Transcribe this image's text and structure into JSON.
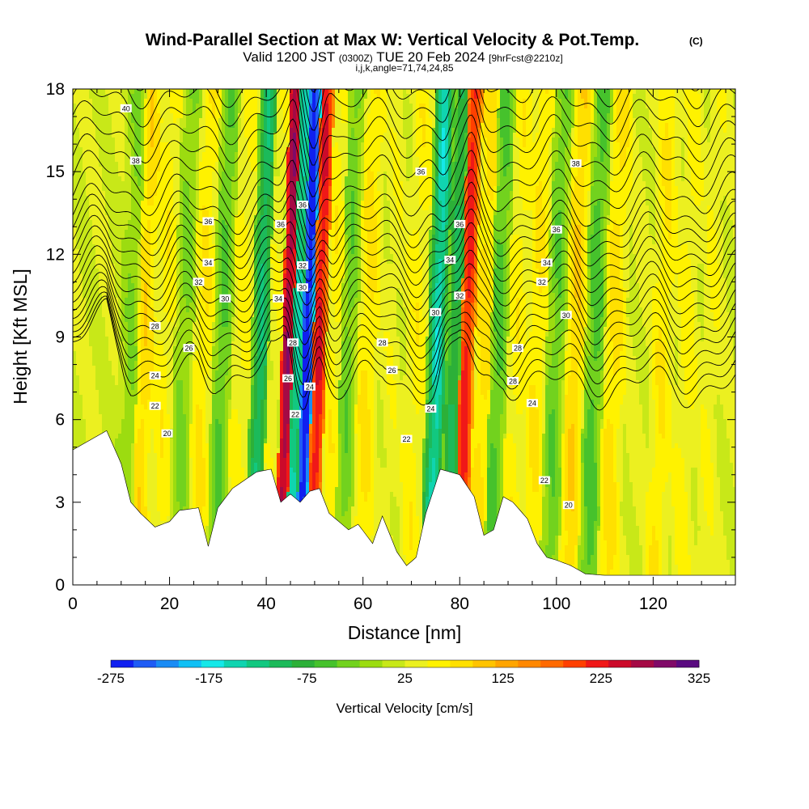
{
  "chart_data": {
    "type": "heatmap",
    "title": "Wind-Parallel Section at Max W: Vertical Velocity & Pot.Temp.",
    "title_mark": "(C)",
    "subtitle_main": "Valid 1200 JST",
    "subtitle_zulu": "(0300Z)",
    "subtitle_date": "TUE 20 Feb 2024",
    "subtitle_fcst": "[9hrFcst@2210z]",
    "subtitle2": "i,j,k,angle=71,74,24,85",
    "xlabel": "Distance [nm]",
    "ylabel": "Height [Kft MSL]",
    "xlim": [
      0,
      137
    ],
    "ylim": [
      0,
      18
    ],
    "x_ticks": [
      "0",
      "20",
      "40",
      "60",
      "80",
      "100",
      "120"
    ],
    "y_ticks": [
      "0",
      "3",
      "6",
      "9",
      "12",
      "15",
      "18"
    ],
    "colorbar": {
      "label": "Vertical Velocity [cm/s]",
      "ticks": [
        "-275",
        "-175",
        "-75",
        "25",
        "125",
        "225",
        "325"
      ],
      "range": [
        -275,
        325
      ],
      "colors": [
        "#1020f0",
        "#1f5cf5",
        "#1a8cf5",
        "#10c0f5",
        "#15e8e8",
        "#10d4b0",
        "#12c880",
        "#1cba5a",
        "#2cb038",
        "#46c22c",
        "#72d21e",
        "#9cdc10",
        "#c8e818",
        "#ecf020",
        "#fff200",
        "#ffe000",
        "#ffc400",
        "#ffa500",
        "#ff8800",
        "#ff6a00",
        "#ff4000",
        "#f01818",
        "#cc0a2a",
        "#a50a45",
        "#800a68",
        "#5a0a80"
      ]
    },
    "w_features": [
      {
        "x": 12,
        "w": -20
      },
      {
        "x": 15,
        "w": 85
      },
      {
        "x": 19,
        "w": 60
      },
      {
        "x": 23,
        "w": -25
      },
      {
        "x": 27,
        "w": 70
      },
      {
        "x": 31,
        "w": -45
      },
      {
        "x": 35,
        "w": 55
      },
      {
        "x": 39,
        "w": -110
      },
      {
        "x": 42,
        "w": 40
      },
      {
        "x": 44.5,
        "w": 270
      },
      {
        "x": 46.5,
        "w": -140
      },
      {
        "x": 48.5,
        "w": -275
      },
      {
        "x": 51,
        "w": 230
      },
      {
        "x": 54,
        "w": 60
      },
      {
        "x": 57,
        "w": -35
      },
      {
        "x": 61,
        "w": 75
      },
      {
        "x": 66,
        "w": 40
      },
      {
        "x": 71,
        "w": 60
      },
      {
        "x": 75.5,
        "w": -150
      },
      {
        "x": 79,
        "w": -90
      },
      {
        "x": 81.5,
        "w": 220
      },
      {
        "x": 85,
        "w": 80
      },
      {
        "x": 88,
        "w": -50
      },
      {
        "x": 92,
        "w": 60
      },
      {
        "x": 96,
        "w": 70
      },
      {
        "x": 100,
        "w": -40
      },
      {
        "x": 104,
        "w": 90
      },
      {
        "x": 108,
        "w": -55
      },
      {
        "x": 112,
        "w": 80
      },
      {
        "x": 117,
        "w": 30
      },
      {
        "x": 122,
        "w": 70
      },
      {
        "x": 127,
        "w": 55
      },
      {
        "x": 132,
        "w": 45
      }
    ],
    "terrain": [
      [
        0,
        4.9
      ],
      [
        7,
        5.6
      ],
      [
        10,
        4.4
      ],
      [
        12,
        3.0
      ],
      [
        14,
        2.6
      ],
      [
        17,
        2.1
      ],
      [
        20,
        2.3
      ],
      [
        22,
        2.7
      ],
      [
        26,
        2.8
      ],
      [
        28,
        1.4
      ],
      [
        30,
        2.8
      ],
      [
        33,
        3.5
      ],
      [
        38,
        4.1
      ],
      [
        41,
        4.2
      ],
      [
        43,
        3.0
      ],
      [
        45,
        3.3
      ],
      [
        47,
        3.0
      ],
      [
        49,
        3.4
      ],
      [
        51,
        3.5
      ],
      [
        53,
        2.6
      ],
      [
        57,
        2.0
      ],
      [
        59,
        2.2
      ],
      [
        62,
        1.5
      ],
      [
        64,
        2.5
      ],
      [
        67,
        1.2
      ],
      [
        69,
        0.7
      ],
      [
        71,
        1.0
      ],
      [
        73,
        2.6
      ],
      [
        76,
        4.2
      ],
      [
        80,
        4.0
      ],
      [
        83,
        3.2
      ],
      [
        85,
        1.8
      ],
      [
        87,
        2.0
      ],
      [
        89,
        3.2
      ],
      [
        91,
        3.0
      ],
      [
        94,
        2.4
      ],
      [
        96,
        1.5
      ],
      [
        98,
        1.0
      ],
      [
        100,
        0.9
      ],
      [
        103,
        0.7
      ],
      [
        106,
        0.4
      ],
      [
        110,
        0.35
      ],
      [
        120,
        0.35
      ],
      [
        137,
        0.35
      ]
    ],
    "theta_levels": [
      16,
      17,
      18,
      19,
      20,
      21,
      22,
      23,
      24,
      25,
      26,
      27,
      28,
      29,
      30,
      31,
      32,
      33,
      34,
      35,
      36,
      37,
      38,
      39,
      40
    ],
    "contour_labels": [
      {
        "text": "40",
        "x": 11,
        "y": 17.3
      },
      {
        "text": "38",
        "x": 13,
        "y": 15.4
      },
      {
        "text": "36",
        "x": 28,
        "y": 13.2
      },
      {
        "text": "34",
        "x": 28,
        "y": 11.7
      },
      {
        "text": "32",
        "x": 26,
        "y": 11.0
      },
      {
        "text": "30",
        "x": 31.5,
        "y": 10.4
      },
      {
        "text": "28",
        "x": 17,
        "y": 9.4
      },
      {
        "text": "26",
        "x": 24,
        "y": 8.6
      },
      {
        "text": "24",
        "x": 17,
        "y": 7.6
      },
      {
        "text": "22",
        "x": 17,
        "y": 6.5
      },
      {
        "text": "20",
        "x": 19.5,
        "y": 5.5
      },
      {
        "text": "36",
        "x": 43,
        "y": 13.1
      },
      {
        "text": "36",
        "x": 47.5,
        "y": 13.8
      },
      {
        "text": "32",
        "x": 47.5,
        "y": 11.6
      },
      {
        "text": "30",
        "x": 47.5,
        "y": 10.8
      },
      {
        "text": "34",
        "x": 42.5,
        "y": 10.4
      },
      {
        "text": "28",
        "x": 45.5,
        "y": 8.8
      },
      {
        "text": "26",
        "x": 44.5,
        "y": 7.5
      },
      {
        "text": "24",
        "x": 49,
        "y": 7.2
      },
      {
        "text": "22",
        "x": 46,
        "y": 6.2
      },
      {
        "text": "36",
        "x": 72,
        "y": 15.0
      },
      {
        "text": "36",
        "x": 80,
        "y": 13.1
      },
      {
        "text": "34",
        "x": 78,
        "y": 11.8
      },
      {
        "text": "32",
        "x": 80,
        "y": 10.5
      },
      {
        "text": "30",
        "x": 75,
        "y": 9.9
      },
      {
        "text": "28",
        "x": 64,
        "y": 8.8
      },
      {
        "text": "26",
        "x": 66,
        "y": 7.8
      },
      {
        "text": "24",
        "x": 74,
        "y": 6.4
      },
      {
        "text": "22",
        "x": 69,
        "y": 5.3
      },
      {
        "text": "38",
        "x": 104,
        "y": 15.3
      },
      {
        "text": "36",
        "x": 100,
        "y": 12.9
      },
      {
        "text": "34",
        "x": 98,
        "y": 11.7
      },
      {
        "text": "32",
        "x": 97,
        "y": 11.0
      },
      {
        "text": "30",
        "x": 102,
        "y": 9.8
      },
      {
        "text": "28",
        "x": 92,
        "y": 8.6
      },
      {
        "text": "28",
        "x": 91,
        "y": 7.4
      },
      {
        "text": "24",
        "x": 95,
        "y": 6.6
      },
      {
        "text": "22",
        "x": 97.5,
        "y": 3.8
      },
      {
        "text": "20",
        "x": 102.5,
        "y": 2.9
      }
    ]
  }
}
